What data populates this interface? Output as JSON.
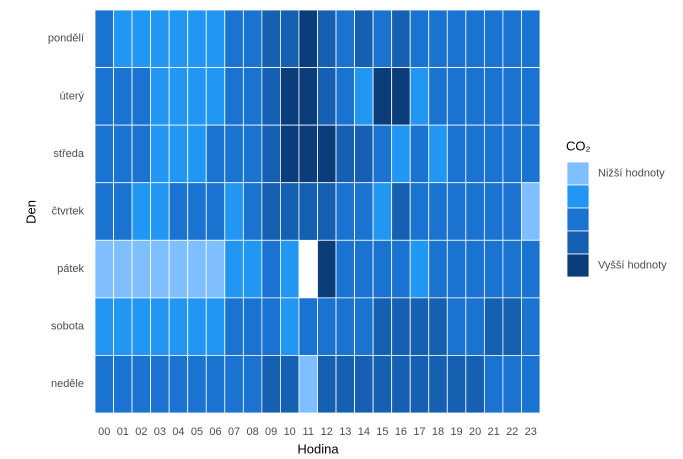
{
  "chart_data": {
    "type": "heatmap",
    "x_label": "Hodina",
    "y_label": "Den",
    "x": [
      "00",
      "01",
      "02",
      "03",
      "04",
      "05",
      "06",
      "07",
      "08",
      "09",
      "10",
      "11",
      "12",
      "13",
      "14",
      "15",
      "16",
      "17",
      "18",
      "19",
      "20",
      "21",
      "22",
      "23"
    ],
    "y": [
      "pondělí",
      "úterý",
      "středa",
      "čtvrtek",
      "pátek",
      "sobota",
      "neděle"
    ],
    "values": [
      [
        3,
        2,
        2,
        2,
        2,
        2,
        2,
        3,
        3,
        4,
        4,
        5,
        4,
        3,
        4,
        3,
        4,
        3,
        3,
        3,
        3,
        3,
        3,
        3
      ],
      [
        3,
        3,
        3,
        2,
        2,
        2,
        2,
        3,
        3,
        4,
        5,
        5,
        4,
        3,
        2,
        5,
        5,
        2,
        3,
        3,
        3,
        3,
        3,
        3
      ],
      [
        3,
        3,
        3,
        2,
        2,
        2,
        3,
        3,
        3,
        4,
        5,
        5,
        5,
        4,
        4,
        3,
        2,
        3,
        2,
        3,
        3,
        3,
        3,
        3
      ],
      [
        3,
        3,
        2,
        2,
        3,
        3,
        3,
        2,
        3,
        4,
        4,
        4,
        4,
        3,
        3,
        2,
        4,
        3,
        3,
        3,
        3,
        3,
        3,
        1
      ],
      [
        1,
        1,
        1,
        1,
        1,
        1,
        1,
        2,
        2,
        3,
        2,
        null,
        5,
        3,
        3,
        3,
        3,
        2,
        3,
        3,
        3,
        3,
        3,
        3
      ],
      [
        2,
        2,
        2,
        2,
        2,
        2,
        2,
        3,
        3,
        3,
        2,
        3,
        3,
        3,
        3,
        4,
        4,
        4,
        4,
        3,
        3,
        4,
        4,
        3
      ],
      [
        3,
        3,
        3,
        3,
        3,
        3,
        3,
        3,
        3,
        4,
        4,
        1,
        4,
        4,
        4,
        4,
        4,
        4,
        4,
        4,
        4,
        3,
        3,
        3
      ]
    ],
    "legend": {
      "title": "CO₂",
      "levels": [
        1,
        2,
        3,
        4,
        5
      ],
      "labels": [
        "Nižší hodnoty",
        null,
        null,
        null,
        "Vyšší hodnoty"
      ],
      "colors": [
        "#7fbfff",
        "#2196f3",
        "#1a73d0",
        "#1560b0",
        "#0b3d7a"
      ]
    }
  }
}
